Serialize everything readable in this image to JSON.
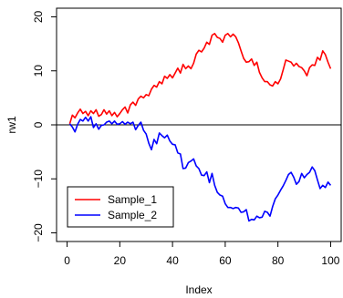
{
  "chart_data": {
    "type": "line",
    "xlabel": "Index",
    "ylabel": "rw1",
    "xlim": [
      0,
      100
    ],
    "ylim": [
      -20,
      20
    ],
    "x_ticks": [
      "0",
      "20",
      "40",
      "60",
      "80",
      "100"
    ],
    "y_ticks": [
      "20",
      "10",
      "0",
      "−10",
      "−20"
    ],
    "grid": false,
    "reference_line": 0,
    "legend_position": "bottom-left",
    "series": [
      {
        "name": "Sample_1",
        "color": "#ff0000",
        "points": [
          [
            1,
            0.2
          ],
          [
            2,
            1.8
          ],
          [
            3,
            1.3
          ],
          [
            4,
            2.2
          ],
          [
            5,
            2.9
          ],
          [
            6,
            2.1
          ],
          [
            7,
            2.5
          ],
          [
            8,
            1.7
          ],
          [
            9,
            2.6
          ],
          [
            10,
            2.1
          ],
          [
            11,
            2.8
          ],
          [
            12,
            1.6
          ],
          [
            13,
            1.9
          ],
          [
            14,
            2.8
          ],
          [
            15,
            2.0
          ],
          [
            16,
            2.6
          ],
          [
            17,
            1.7
          ],
          [
            18,
            2.3
          ],
          [
            19,
            1.5
          ],
          [
            20,
            2.1
          ],
          [
            21,
            2.8
          ],
          [
            22,
            3.3
          ],
          [
            23,
            2.2
          ],
          [
            24,
            3.7
          ],
          [
            25,
            4.2
          ],
          [
            26,
            3.6
          ],
          [
            27,
            4.8
          ],
          [
            28,
            5.3
          ],
          [
            29,
            5.0
          ],
          [
            30,
            5.6
          ],
          [
            31,
            5.4
          ],
          [
            32,
            6.6
          ],
          [
            33,
            7.3
          ],
          [
            34,
            7.0
          ],
          [
            35,
            8.0
          ],
          [
            36,
            7.6
          ],
          [
            37,
            9.0
          ],
          [
            38,
            8.6
          ],
          [
            39,
            9.3
          ],
          [
            40,
            8.7
          ],
          [
            41,
            9.6
          ],
          [
            42,
            10.5
          ],
          [
            43,
            9.6
          ],
          [
            44,
            11.2
          ],
          [
            45,
            10.4
          ],
          [
            46,
            10.9
          ],
          [
            47,
            10.4
          ],
          [
            48,
            11.4
          ],
          [
            49,
            13.1
          ],
          [
            50,
            13.8
          ],
          [
            51,
            13.5
          ],
          [
            52,
            14.2
          ],
          [
            53,
            15.3
          ],
          [
            54,
            14.9
          ],
          [
            55,
            16.6
          ],
          [
            56,
            16.9
          ],
          [
            57,
            16.2
          ],
          [
            58,
            16.0
          ],
          [
            59,
            15.3
          ],
          [
            60,
            16.6
          ],
          [
            61,
            16.9
          ],
          [
            62,
            16.3
          ],
          [
            63,
            16.8
          ],
          [
            64,
            16.3
          ],
          [
            65,
            15.2
          ],
          [
            66,
            13.7
          ],
          [
            67,
            12.3
          ],
          [
            68,
            11.6
          ],
          [
            69,
            11.7
          ],
          [
            70,
            12.2
          ],
          [
            71,
            11.0
          ],
          [
            72,
            11.6
          ],
          [
            73,
            9.7
          ],
          [
            74,
            8.7
          ],
          [
            75,
            8.0
          ],
          [
            76,
            8.0
          ],
          [
            77,
            7.4
          ],
          [
            78,
            7.2
          ],
          [
            79,
            8.0
          ],
          [
            80,
            7.6
          ],
          [
            81,
            8.5
          ],
          [
            82,
            10.2
          ],
          [
            83,
            12.0
          ],
          [
            84,
            11.8
          ],
          [
            85,
            11.6
          ],
          [
            86,
            10.9
          ],
          [
            87,
            11.4
          ],
          [
            88,
            10.8
          ],
          [
            89,
            10.6
          ],
          [
            90,
            10.0
          ],
          [
            91,
            9.1
          ],
          [
            92,
            10.6
          ],
          [
            93,
            11.1
          ],
          [
            94,
            11.0
          ],
          [
            95,
            12.5
          ],
          [
            96,
            12.0
          ],
          [
            97,
            13.7
          ],
          [
            98,
            13.0
          ],
          [
            99,
            11.6
          ],
          [
            100,
            10.4
          ]
        ]
      },
      {
        "name": "Sample_2",
        "color": "#0000ff",
        "points": [
          [
            1,
            0.2
          ],
          [
            2,
            -0.4
          ],
          [
            3,
            -1.3
          ],
          [
            4,
            0.1
          ],
          [
            5,
            1.0
          ],
          [
            6,
            0.7
          ],
          [
            7,
            1.4
          ],
          [
            8,
            0.7
          ],
          [
            9,
            1.5
          ],
          [
            10,
            -0.5
          ],
          [
            11,
            0.2
          ],
          [
            12,
            -0.8
          ],
          [
            13,
            -0.1
          ],
          [
            14,
            0.0
          ],
          [
            15,
            0.5
          ],
          [
            16,
            0.7
          ],
          [
            17,
            0.2
          ],
          [
            18,
            0.7
          ],
          [
            19,
            0.1
          ],
          [
            20,
            0.2
          ],
          [
            21,
            0.6
          ],
          [
            22,
            0.1
          ],
          [
            23,
            0.5
          ],
          [
            24,
            0.2
          ],
          [
            25,
            0.5
          ],
          [
            26,
            -0.9
          ],
          [
            27,
            -0.1
          ],
          [
            28,
            0.5
          ],
          [
            29,
            -1.0
          ],
          [
            30,
            -1.7
          ],
          [
            31,
            -3.4
          ],
          [
            32,
            -4.6
          ],
          [
            33,
            -2.7
          ],
          [
            34,
            -3.5
          ],
          [
            35,
            -1.5
          ],
          [
            36,
            -2.0
          ],
          [
            37,
            -2.4
          ],
          [
            38,
            -1.9
          ],
          [
            39,
            -3.0
          ],
          [
            40,
            -3.6
          ],
          [
            41,
            -3.7
          ],
          [
            42,
            -5.2
          ],
          [
            43,
            -5.4
          ],
          [
            44,
            -8.1
          ],
          [
            45,
            -8.0
          ],
          [
            46,
            -7.0
          ],
          [
            47,
            -6.7
          ],
          [
            48,
            -6.3
          ],
          [
            49,
            -7.6
          ],
          [
            50,
            -8.1
          ],
          [
            51,
            -9.3
          ],
          [
            52,
            -9.4
          ],
          [
            53,
            -8.7
          ],
          [
            54,
            -10.7
          ],
          [
            55,
            -9.0
          ],
          [
            56,
            -11.2
          ],
          [
            57,
            -12.5
          ],
          [
            58,
            -13.0
          ],
          [
            59,
            -13.2
          ],
          [
            60,
            -14.6
          ],
          [
            61,
            -15.3
          ],
          [
            62,
            -15.3
          ],
          [
            63,
            -15.5
          ],
          [
            64,
            -15.3
          ],
          [
            65,
            -15.4
          ],
          [
            66,
            -16.2
          ],
          [
            67,
            -16.1
          ],
          [
            68,
            -15.7
          ],
          [
            69,
            -17.8
          ],
          [
            70,
            -17.5
          ],
          [
            71,
            -17.6
          ],
          [
            72,
            -16.9
          ],
          [
            73,
            -17.2
          ],
          [
            74,
            -17.1
          ],
          [
            75,
            -16.0
          ],
          [
            76,
            -16.2
          ],
          [
            77,
            -16.9
          ],
          [
            78,
            -15.1
          ],
          [
            79,
            -13.7
          ],
          [
            80,
            -13.0
          ],
          [
            81,
            -12.1
          ],
          [
            82,
            -11.3
          ],
          [
            83,
            -10.3
          ],
          [
            84,
            -9.2
          ],
          [
            85,
            -8.8
          ],
          [
            86,
            -9.7
          ],
          [
            87,
            -11.0
          ],
          [
            88,
            -10.5
          ],
          [
            89,
            -9.0
          ],
          [
            90,
            -9.8
          ],
          [
            91,
            -9.2
          ],
          [
            92,
            -8.8
          ],
          [
            93,
            -7.8
          ],
          [
            94,
            -8.5
          ],
          [
            95,
            -10.2
          ],
          [
            96,
            -11.8
          ],
          [
            97,
            -11.2
          ],
          [
            98,
            -11.6
          ],
          [
            99,
            -10.6
          ],
          [
            100,
            -11.2
          ]
        ]
      }
    ]
  }
}
